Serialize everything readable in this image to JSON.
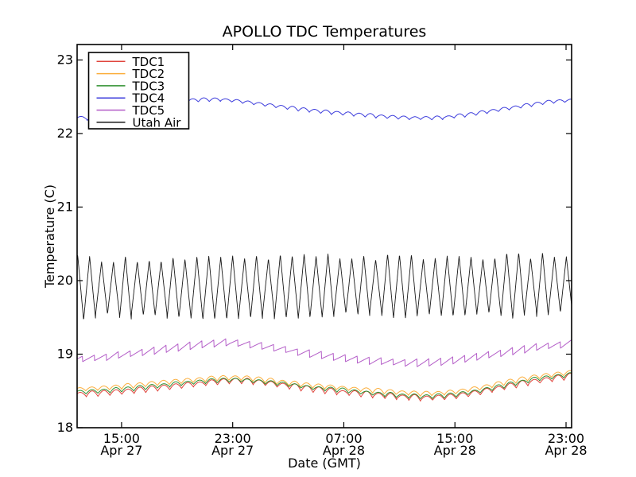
{
  "chart_data": {
    "type": "line",
    "title": "APOLLO TDC Temperatures",
    "xlabel": "Date (GMT)",
    "ylabel": "Temperature (C)",
    "grid": false,
    "legend_position": "upper left",
    "x_unit": "hours elapsed, Apr 27 ~11:50 GMT to Apr 28 ~23:20 GMT",
    "xlim": [
      0,
      35.6
    ],
    "ylim": [
      18,
      23.21
    ],
    "yticks": [
      {
        "pos": 18,
        "label": "18"
      },
      {
        "pos": 19,
        "label": "19"
      },
      {
        "pos": 20,
        "label": "20"
      },
      {
        "pos": 21,
        "label": "21"
      },
      {
        "pos": 22,
        "label": "22"
      },
      {
        "pos": 23,
        "label": "23"
      }
    ],
    "xticks": [
      {
        "pos": 3.2,
        "time": "15:00",
        "date": "Apr 27"
      },
      {
        "pos": 11.2,
        "time": "23:00",
        "date": "Apr 27"
      },
      {
        "pos": 19.2,
        "time": "07:00",
        "date": "Apr 28"
      },
      {
        "pos": 27.2,
        "time": "15:00",
        "date": "Apr 28"
      },
      {
        "pos": 35.2,
        "time": "23:00",
        "date": "Apr 28"
      }
    ],
    "series": [
      {
        "name": "TDC1",
        "color": "#e0443c",
        "linewidth": 1,
        "osc": {
          "shape": "scallop",
          "amplitude": 0.035,
          "period": 0.86,
          "phase": 0.25,
          "jitter": 0.3
        },
        "trend": [
          [
            0,
            18.45
          ],
          [
            2,
            18.47
          ],
          [
            4,
            18.5
          ],
          [
            6,
            18.54
          ],
          [
            8,
            18.58
          ],
          [
            10,
            18.62
          ],
          [
            11.5,
            18.64
          ],
          [
            13,
            18.62
          ],
          [
            15,
            18.57
          ],
          [
            17,
            18.52
          ],
          [
            19,
            18.48
          ],
          [
            21,
            18.45
          ],
          [
            23,
            18.42
          ],
          [
            25,
            18.4
          ],
          [
            27,
            18.42
          ],
          [
            29,
            18.48
          ],
          [
            31,
            18.56
          ],
          [
            33,
            18.63
          ],
          [
            35.6,
            18.7
          ]
        ]
      },
      {
        "name": "TDC2",
        "color": "#fbae3c",
        "linewidth": 1,
        "osc": {
          "shape": "scallop",
          "amplitude": 0.03,
          "period": 0.86,
          "phase": 0.28,
          "jitter": 0.25
        },
        "trend": [
          [
            0,
            18.52
          ],
          [
            2,
            18.54
          ],
          [
            4,
            18.57
          ],
          [
            6,
            18.61
          ],
          [
            8,
            18.64
          ],
          [
            10,
            18.67
          ],
          [
            11.5,
            18.68
          ],
          [
            13,
            18.66
          ],
          [
            15,
            18.61
          ],
          [
            17,
            18.57
          ],
          [
            19,
            18.54
          ],
          [
            21,
            18.51
          ],
          [
            23,
            18.48
          ],
          [
            25,
            18.46
          ],
          [
            27,
            18.48
          ],
          [
            29,
            18.54
          ],
          [
            31,
            18.62
          ],
          [
            33,
            18.69
          ],
          [
            35.6,
            18.75
          ]
        ]
      },
      {
        "name": "TDC3",
        "color": "#2f8f2f",
        "linewidth": 1,
        "osc": {
          "shape": "scallop",
          "amplitude": 0.028,
          "period": 0.86,
          "phase": 0.26,
          "jitter": 0.25
        },
        "trend": [
          [
            0,
            18.48
          ],
          [
            2,
            18.5
          ],
          [
            4,
            18.53
          ],
          [
            6,
            18.57
          ],
          [
            8,
            18.61
          ],
          [
            10,
            18.64
          ],
          [
            11.5,
            18.65
          ],
          [
            13,
            18.63
          ],
          [
            15,
            18.59
          ],
          [
            17,
            18.54
          ],
          [
            19,
            18.51
          ],
          [
            21,
            18.47
          ],
          [
            23,
            18.44
          ],
          [
            25,
            18.42
          ],
          [
            27,
            18.44
          ],
          [
            29,
            18.5
          ],
          [
            31,
            18.58
          ],
          [
            33,
            18.66
          ],
          [
            35.6,
            18.72
          ]
        ]
      },
      {
        "name": "TDC4",
        "color": "#3c3cdc",
        "linewidth": 1,
        "osc": {
          "shape": "scallop",
          "amplitude": 0.022,
          "period": 0.8,
          "phase": 0.1,
          "jitter": 0.3
        },
        "trend": [
          [
            0,
            22.22
          ],
          [
            1,
            22.2
          ],
          [
            3,
            22.3
          ],
          [
            5,
            22.38
          ],
          [
            7,
            22.43
          ],
          [
            9,
            22.46
          ],
          [
            10.5,
            22.46
          ],
          [
            12,
            22.43
          ],
          [
            14,
            22.38
          ],
          [
            16,
            22.33
          ],
          [
            18,
            22.29
          ],
          [
            20,
            22.26
          ],
          [
            22,
            22.23
          ],
          [
            24,
            22.21
          ],
          [
            26,
            22.21
          ],
          [
            28,
            22.25
          ],
          [
            30,
            22.31
          ],
          [
            32,
            22.37
          ],
          [
            34,
            22.43
          ],
          [
            35.6,
            22.45
          ]
        ]
      },
      {
        "name": "TDC5",
        "color": "#b45ec8",
        "linewidth": 1,
        "osc": {
          "shape": "saw",
          "amplitude": 0.045,
          "period": 0.86,
          "phase": 0.55,
          "jitter": 0.2
        },
        "trend": [
          [
            0,
            18.93
          ],
          [
            2,
            18.96
          ],
          [
            4,
            19.01
          ],
          [
            6,
            19.06
          ],
          [
            8,
            19.11
          ],
          [
            10,
            19.15
          ],
          [
            11,
            19.16
          ],
          [
            13,
            19.12
          ],
          [
            15,
            19.06
          ],
          [
            17,
            19.0
          ],
          [
            19,
            18.95
          ],
          [
            21,
            18.91
          ],
          [
            23,
            18.89
          ],
          [
            25,
            18.88
          ],
          [
            27,
            18.91
          ],
          [
            29,
            18.97
          ],
          [
            31,
            19.03
          ],
          [
            33,
            19.09
          ],
          [
            35.6,
            19.15
          ]
        ]
      },
      {
        "name": "Utah Air",
        "color": "#1a1a1a",
        "linewidth": 0.9,
        "osc": {
          "shape": "triangle",
          "amplitude": 0.4,
          "period": 0.858,
          "phase": 0.45,
          "jitter": 0.12
        },
        "trend": [
          [
            0,
            19.9
          ],
          [
            5,
            19.9
          ],
          [
            10,
            19.9
          ],
          [
            15,
            19.92
          ],
          [
            20,
            19.93
          ],
          [
            25,
            19.92
          ],
          [
            30,
            19.93
          ],
          [
            35.6,
            19.95
          ]
        ]
      }
    ]
  }
}
